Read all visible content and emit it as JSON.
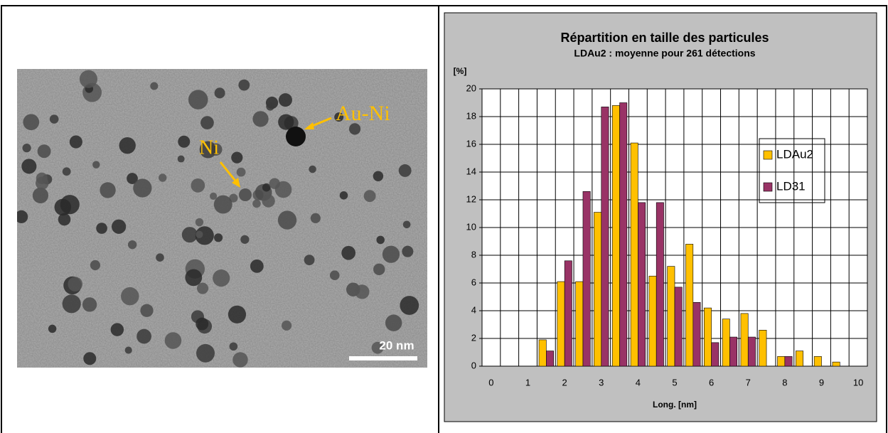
{
  "micrograph": {
    "labels": [
      "Au-Ni",
      "Ni"
    ],
    "scale_bar": "20 nm"
  },
  "chart_data": {
    "type": "bar",
    "title": "Répartition en taille des particules",
    "subtitle": "LDAu2 : moyenne pour 261 détections",
    "y_label": "[%]",
    "x_label": "Long. [nm]",
    "categories": [
      "0",
      null,
      "1",
      null,
      "2",
      null,
      "3",
      null,
      "4",
      null,
      "5",
      null,
      "6",
      null,
      "7",
      null,
      "8",
      null,
      "9",
      null,
      "10"
    ],
    "series": [
      {
        "name": "LDAu2",
        "color": "#ffc000",
        "values": [
          0,
          0,
          0,
          1.9,
          6.1,
          6.1,
          11.1,
          18.8,
          16.1,
          6.5,
          7.2,
          8.8,
          4.2,
          3.4,
          3.8,
          2.6,
          0.7,
          1.1,
          0.7,
          0.3,
          0
        ]
      },
      {
        "name": "LD31",
        "color": "#993366",
        "values": [
          0,
          0,
          0,
          1.1,
          7.6,
          12.6,
          18.7,
          19.0,
          11.8,
          11.8,
          5.7,
          4.6,
          1.7,
          2.1,
          2.1,
          0,
          0.7,
          0,
          0,
          0,
          0
        ]
      }
    ],
    "ylim": [
      0,
      20
    ],
    "yticks": [
      0,
      2,
      4,
      6,
      8,
      10,
      12,
      14,
      16,
      18,
      20
    ],
    "grid": true,
    "legend": "right"
  }
}
